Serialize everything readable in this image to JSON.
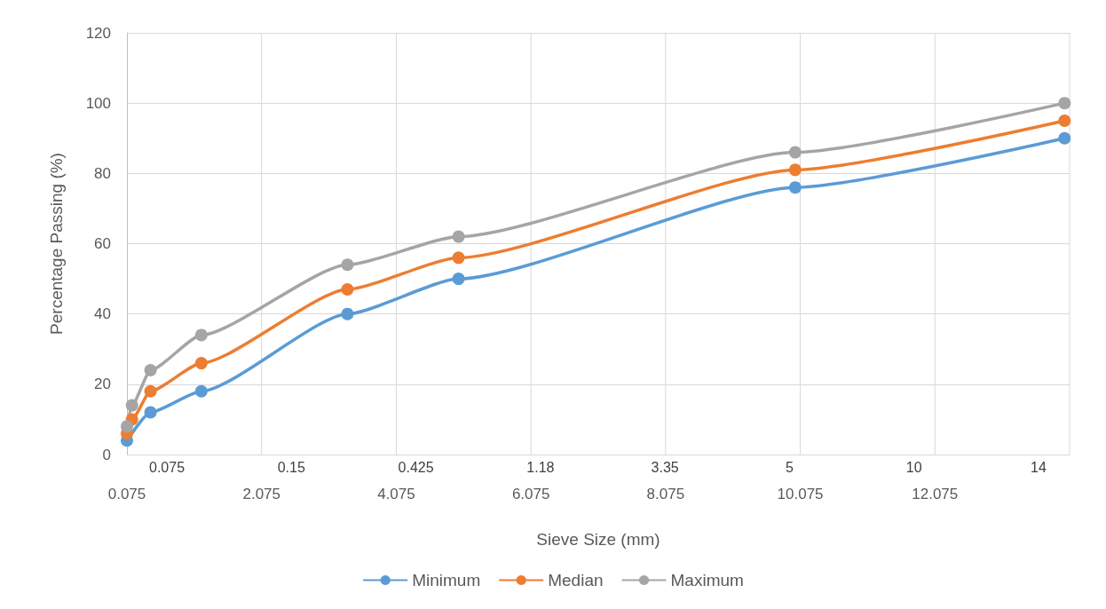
{
  "chart_data": {
    "type": "line",
    "xlabel": "Sieve Size (mm)",
    "ylabel": "Percentage Passing (%)",
    "x": [
      0.075,
      0.15,
      0.425,
      1.18,
      3.35,
      5,
      10,
      14
    ],
    "series": [
      {
        "name": "Minimum",
        "color": "#5b9bd5",
        "values": [
          4,
          null,
          12,
          18,
          40,
          50,
          76,
          90
        ]
      },
      {
        "name": "Median",
        "color": "#ed7d31",
        "values": [
          6,
          10,
          18,
          26,
          47,
          56,
          81,
          95
        ]
      },
      {
        "name": "Maximum",
        "color": "#a5a5a5",
        "values": [
          8,
          14,
          24,
          34,
          54,
          62,
          86,
          100
        ]
      }
    ],
    "xlim": [
      0.075,
      14.075
    ],
    "xticks": [
      0.075,
      2.075,
      4.075,
      6.075,
      8.075,
      10.075,
      12.075
    ],
    "annotations": [
      "0.075",
      "0.15",
      "0.425",
      "1.18",
      "3.35",
      "5",
      "10",
      "14"
    ],
    "ylim": [
      0,
      120
    ],
    "yticks": [
      0,
      20,
      40,
      60,
      80,
      100,
      120
    ],
    "grid": true,
    "legend": "bottom",
    "marker": "circle"
  }
}
